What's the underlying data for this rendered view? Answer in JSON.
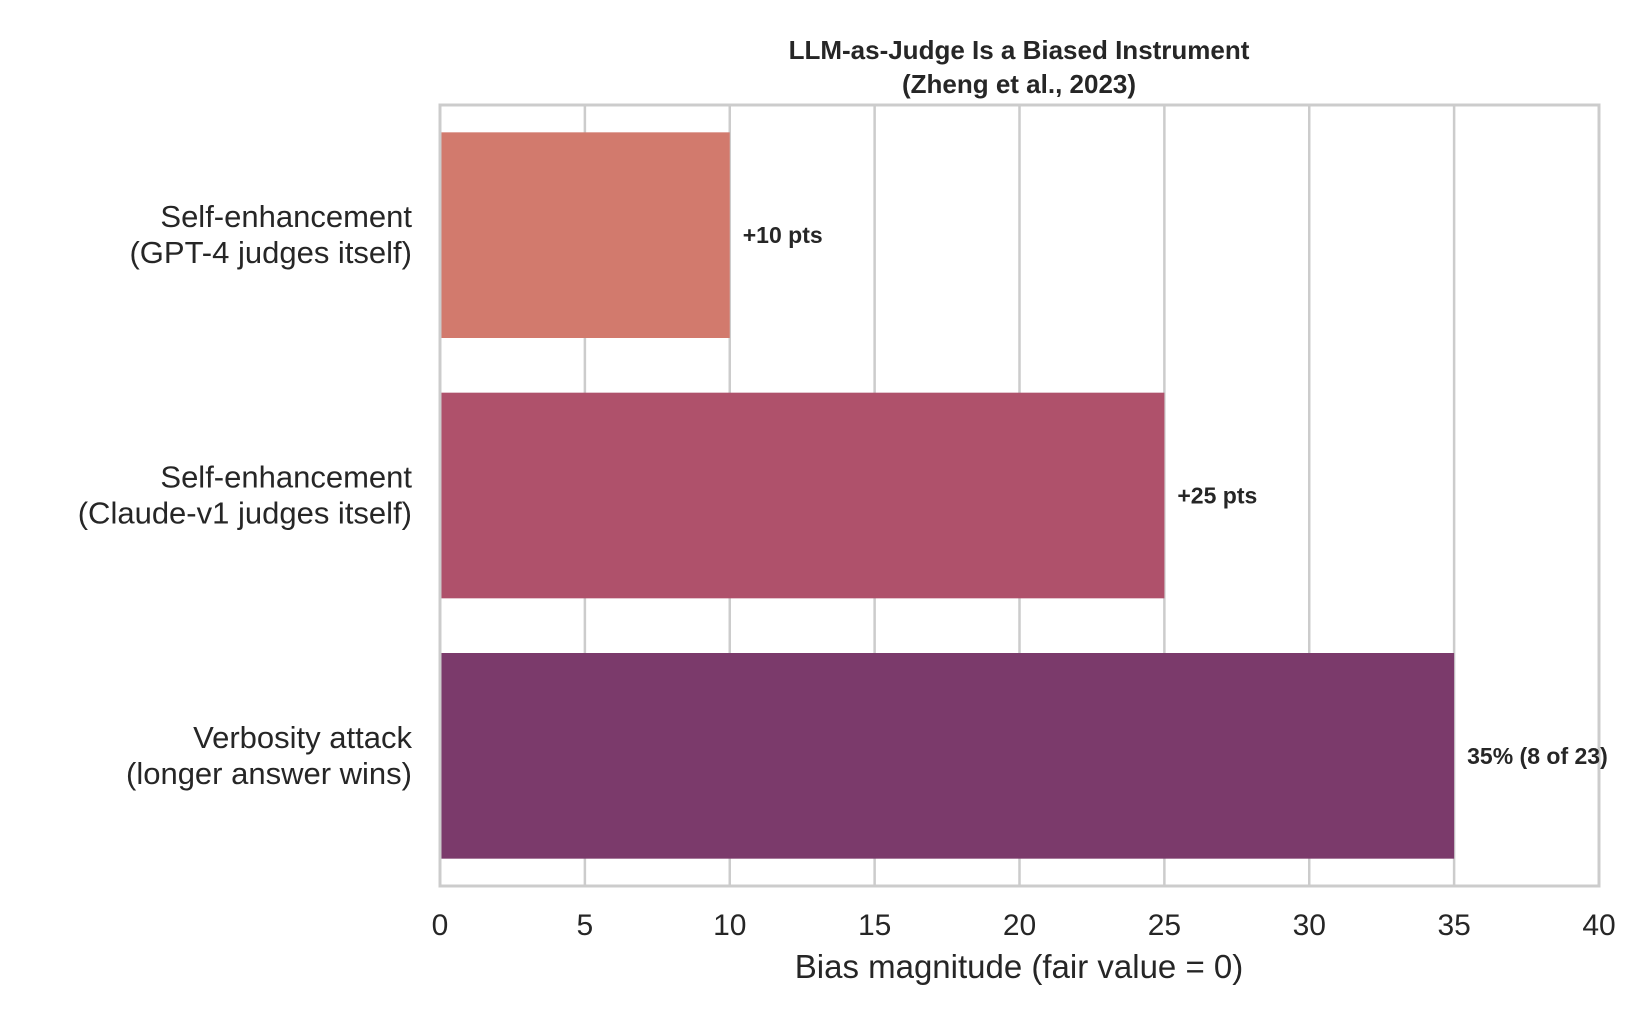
{
  "chart_data": {
    "type": "bar",
    "orientation": "horizontal",
    "title": [
      "LLM-as-Judge Is a Biased Instrument",
      "(Zheng et al., 2023)"
    ],
    "xlabel": "Bias magnitude (fair value = 0)",
    "ylabel": "",
    "xlim": [
      0,
      40
    ],
    "xticks": [
      "0",
      "5",
      "10",
      "15",
      "20",
      "25",
      "30",
      "35",
      "40"
    ],
    "grid": "vertical",
    "categories": [
      [
        "Self-enhancement",
        "(GPT-4 judges itself)"
      ],
      [
        "Self-enhancement",
        "(Claude-v1 judges itself)"
      ],
      [
        "Verbosity attack",
        "(longer answer wins)"
      ]
    ],
    "values": [
      10,
      25,
      35
    ],
    "data_labels": [
      "+10 pts",
      "+25 pts",
      "35% (8 of 23)"
    ],
    "colors": [
      "#d27a6d",
      "#af516b",
      "#7b3a6b"
    ],
    "grid_color": "#cccccc",
    "spine_color": "#cccccc",
    "text_color": "#262626"
  }
}
